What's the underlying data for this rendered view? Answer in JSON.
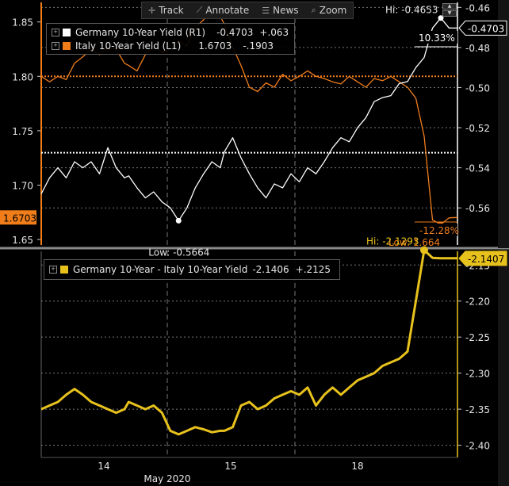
{
  "toolbar": {
    "items": [
      {
        "icon": "crosshair-icon",
        "glyph": "✛",
        "label": "Track"
      },
      {
        "icon": "pencil-icon",
        "glyph": "⟋",
        "label": "Annotate"
      },
      {
        "icon": "news-icon",
        "glyph": "☰",
        "label": "News"
      },
      {
        "icon": "magnifier-icon",
        "glyph": "⌕",
        "label": "Zoom"
      }
    ]
  },
  "colors": {
    "germany": "#ffffff",
    "italy": "#f07d1a",
    "spread": "#e8c21c",
    "background": "#000000",
    "grid": "#777777"
  },
  "chart_data": [
    {
      "type": "line",
      "panel": "top",
      "x_labels": [
        "14",
        "15",
        "18"
      ],
      "x_period_label": "May 2020",
      "left_axis": {
        "ticks": [
          "1.65",
          "1.70",
          "1.75",
          "1.80",
          "1.85"
        ],
        "range": [
          1.645,
          1.868
        ]
      },
      "right_axis": {
        "ticks": [
          "-0.46",
          "-0.48",
          "-0.50",
          "-0.52",
          "-0.54",
          "-0.56"
        ],
        "range": [
          -0.5785,
          -0.4575
        ]
      },
      "legend": [
        {
          "name": "Germany 10-Year Yield (R1)",
          "value": "-0.4703",
          "change": "+.063"
        },
        {
          "name": "Italy 10-Year Yield  (L1)",
          "value": "1.6703",
          "change": "-.1903"
        }
      ],
      "series": [
        {
          "name": "Germany 10-Year Yield (R1)",
          "axis": "right",
          "x": [
            0,
            2,
            4,
            6,
            8,
            10,
            12,
            14,
            16,
            18,
            20,
            21,
            23,
            25,
            27,
            29,
            31,
            33,
            35,
            37,
            39,
            41,
            43,
            44,
            46,
            48,
            50,
            52,
            54,
            56,
            58,
            60,
            62,
            64,
            66,
            68,
            70,
            72,
            74,
            76,
            78,
            80,
            82,
            84,
            86,
            88,
            90,
            92,
            94,
            96,
            98,
            100
          ],
          "values": [
            -0.553,
            -0.545,
            -0.54,
            -0.545,
            -0.537,
            -0.54,
            -0.537,
            -0.543,
            -0.53,
            -0.54,
            -0.545,
            -0.544,
            -0.55,
            -0.555,
            -0.552,
            -0.557,
            -0.56,
            -0.5664,
            -0.56,
            -0.55,
            -0.543,
            -0.537,
            -0.54,
            -0.532,
            -0.525,
            -0.535,
            -0.543,
            -0.55,
            -0.555,
            -0.548,
            -0.55,
            -0.543,
            -0.547,
            -0.54,
            -0.543,
            -0.537,
            -0.53,
            -0.525,
            -0.527,
            -0.52,
            -0.515,
            -0.507,
            -0.505,
            -0.504,
            -0.498,
            -0.497,
            -0.49,
            -0.485,
            -0.4703,
            -0.4653,
            -0.4703,
            -0.4703
          ]
        },
        {
          "name": "Italy 10-Year Yield  (L1)",
          "axis": "left",
          "x": [
            0,
            2,
            4,
            6,
            8,
            10,
            12,
            14,
            16,
            18,
            20,
            21,
            23,
            25,
            27,
            29,
            31,
            33,
            35,
            37,
            39,
            41,
            43,
            44,
            46,
            48,
            50,
            52,
            54,
            56,
            58,
            60,
            62,
            64,
            66,
            68,
            70,
            72,
            74,
            76,
            78,
            80,
            82,
            84,
            86,
            88,
            90,
            92,
            94,
            96,
            98,
            100
          ],
          "values": [
            1.8,
            1.795,
            1.8,
            1.797,
            1.812,
            1.818,
            1.825,
            1.82,
            1.826,
            1.825,
            1.812,
            1.81,
            1.805,
            1.82,
            1.828,
            1.822,
            1.825,
            1.832,
            1.828,
            1.845,
            1.852,
            1.862,
            1.855,
            1.848,
            1.827,
            1.81,
            1.79,
            1.786,
            1.794,
            1.79,
            1.802,
            1.796,
            1.8,
            1.805,
            1.8,
            1.798,
            1.795,
            1.793,
            1.8,
            1.795,
            1.79,
            1.798,
            1.796,
            1.8,
            1.795,
            1.79,
            1.78,
            1.745,
            1.668,
            1.664,
            1.67,
            1.6703
          ]
        }
      ],
      "reference_lines": [
        {
          "axis": "right",
          "value": -0.5325,
          "color": "#ffffff"
        },
        {
          "axis": "left",
          "value": 1.8,
          "color": "#f07d1a"
        }
      ],
      "annotations": [
        {
          "text": "Hi: -0.4653",
          "series": "germany"
        },
        {
          "text": "Low: -0.5664",
          "series": "germany"
        },
        {
          "text": "Low: 1.664",
          "series": "italy"
        },
        {
          "text": "10.33%",
          "series": "germany"
        },
        {
          "text": "-12.28%",
          "series": "italy"
        }
      ],
      "last_value_tags": [
        {
          "axis": "right",
          "text": "-0.4703"
        },
        {
          "axis": "left",
          "text": "1.6703"
        }
      ]
    },
    {
      "type": "line",
      "panel": "bottom",
      "x_labels": [
        "14",
        "15",
        "18"
      ],
      "right_axis": {
        "ticks": [
          "-2.15",
          "-2.20",
          "-2.25",
          "-2.30",
          "-2.35",
          "-2.40"
        ],
        "range": [
          -2.417,
          -2.131
        ]
      },
      "legend": [
        {
          "name": "Germany 10-Year - Italy 10-Year Yield",
          "value": "-2.1406",
          "change": "+.2125"
        }
      ],
      "series": [
        {
          "name": "Germany 10-Year - Italy 10-Year Yield",
          "axis": "right",
          "x": [
            0,
            2,
            4,
            6,
            8,
            10,
            12,
            14,
            16,
            18,
            20,
            21,
            23,
            25,
            27,
            29,
            31,
            33,
            35,
            37,
            39,
            41,
            43,
            44,
            46,
            48,
            50,
            52,
            54,
            56,
            58,
            60,
            62,
            64,
            66,
            68,
            70,
            72,
            74,
            76,
            78,
            80,
            82,
            84,
            86,
            88,
            90,
            92,
            94,
            96,
            98,
            100
          ],
          "values": [
            -2.35,
            -2.345,
            -2.34,
            -2.33,
            -2.322,
            -2.33,
            -2.34,
            -2.345,
            -2.35,
            -2.355,
            -2.35,
            -2.34,
            -2.345,
            -2.35,
            -2.345,
            -2.355,
            -2.38,
            -2.385,
            -2.38,
            -2.375,
            -2.378,
            -2.382,
            -2.38,
            -2.38,
            -2.375,
            -2.345,
            -2.34,
            -2.35,
            -2.345,
            -2.335,
            -2.33,
            -2.325,
            -2.33,
            -2.32,
            -2.345,
            -2.33,
            -2.32,
            -2.33,
            -2.32,
            -2.31,
            -2.305,
            -2.3,
            -2.29,
            -2.285,
            -2.28,
            -2.27,
            -2.2,
            -2.1293,
            -2.14,
            -2.1407,
            -2.1407,
            -2.1407
          ]
        }
      ],
      "annotations": [
        {
          "text": "Hi: -2.1293",
          "series": "spread"
        }
      ],
      "last_value_tags": [
        {
          "axis": "right",
          "text": "-2.1407"
        }
      ]
    }
  ]
}
